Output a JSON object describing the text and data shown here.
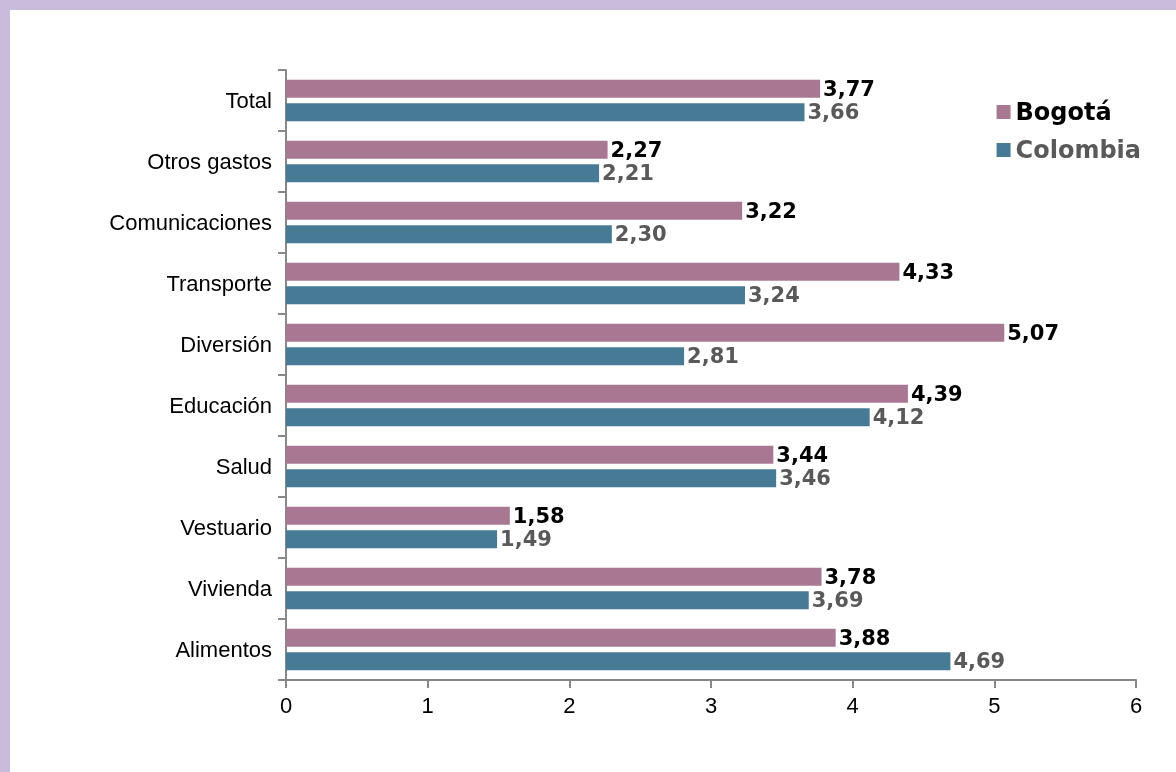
{
  "chart_data": {
    "type": "bar",
    "orientation": "horizontal",
    "categories": [
      "Total",
      "Otros gastos",
      "Comunicaciones",
      "Transporte",
      "Diversión",
      "Educación",
      "Salud",
      "Vestuario",
      "Vivienda",
      "Alimentos"
    ],
    "series": [
      {
        "name": "Bogotá",
        "color": "#a87893",
        "values": [
          3.77,
          2.27,
          3.22,
          4.33,
          5.07,
          4.39,
          3.44,
          1.58,
          3.78,
          3.88
        ],
        "value_labels": [
          "3,77",
          "2,27",
          "3,22",
          "4,33",
          "5,07",
          "4,39",
          "3,44",
          "1,58",
          "3,78",
          "3,88"
        ]
      },
      {
        "name": "Colombia",
        "color": "#477a94",
        "values": [
          3.66,
          2.21,
          2.3,
          3.24,
          2.81,
          4.12,
          3.46,
          1.49,
          3.69,
          4.69
        ],
        "value_labels": [
          "3,66",
          "2,21",
          "2,30",
          "3,24",
          "2,81",
          "4,12",
          "3,46",
          "1,49",
          "3,69",
          "4,69"
        ]
      }
    ],
    "xlim": [
      0,
      6
    ],
    "xticks": [
      0,
      1,
      2,
      3,
      4,
      5,
      6
    ],
    "grid": false,
    "legend": "top right"
  }
}
